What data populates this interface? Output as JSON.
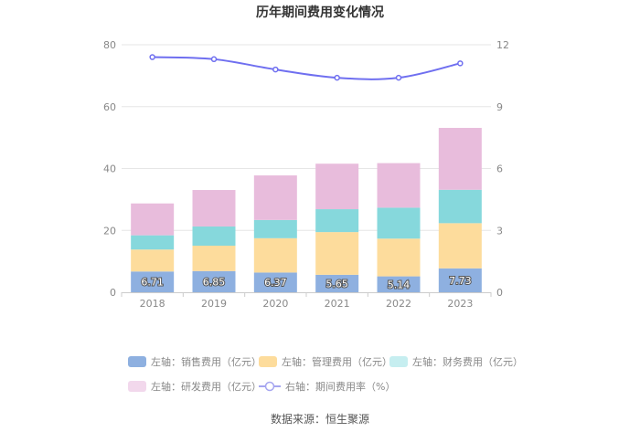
{
  "title": "历年期间费用变化情况",
  "source": "数据来源：恒生聚源",
  "legend": {
    "sales": "左轴：销售费用（亿元）",
    "admin": "左轴：管理费用（亿元）",
    "finance": "左轴：财务费用（亿元）",
    "rnd": "左轴：研发费用（亿元）",
    "rate": "右轴：期间费用率（%）"
  },
  "colors": {
    "sales": "#8eb0e0",
    "admin": "#fddc9c",
    "finance": "#86d8dc",
    "rnd": "#e8bcdc",
    "rate": "#6f6ff0"
  },
  "chart_data": {
    "type": "bar",
    "stacked": true,
    "title": "历年期间费用变化情况",
    "categories": [
      "2018",
      "2019",
      "2020",
      "2021",
      "2022",
      "2023"
    ],
    "series": [
      {
        "name": "左轴：销售费用（亿元）",
        "axis": "left",
        "values": [
          6.71,
          6.85,
          6.37,
          5.65,
          5.14,
          7.73
        ],
        "labels": [
          "6.71",
          "6.85",
          "6.37",
          "5.65",
          "5.14",
          "7.73"
        ]
      },
      {
        "name": "左轴：管理费用（亿元）",
        "axis": "left",
        "values": [
          7.1,
          8.2,
          11.1,
          13.8,
          12.2,
          14.6
        ]
      },
      {
        "name": "左轴：财务费用（亿元）",
        "axis": "left",
        "values": [
          4.6,
          6.2,
          5.9,
          7.4,
          10.0,
          10.8
        ]
      },
      {
        "name": "左轴：研发费用（亿元）",
        "axis": "left",
        "values": [
          10.3,
          11.8,
          14.4,
          14.7,
          14.4,
          20.0
        ]
      },
      {
        "name": "右轴：期间费用率（%）",
        "type": "line",
        "axis": "right",
        "values": [
          11.4,
          11.3,
          10.8,
          10.4,
          10.4,
          11.1
        ]
      }
    ],
    "y_left": {
      "min": 0,
      "max": 80,
      "ticks": [
        "0",
        "20",
        "40",
        "60",
        "80"
      ]
    },
    "y_right": {
      "min": 0,
      "max": 12,
      "ticks": [
        "0",
        "3",
        "6",
        "9",
        "12"
      ]
    },
    "grid": true,
    "legend_position": "bottom"
  }
}
